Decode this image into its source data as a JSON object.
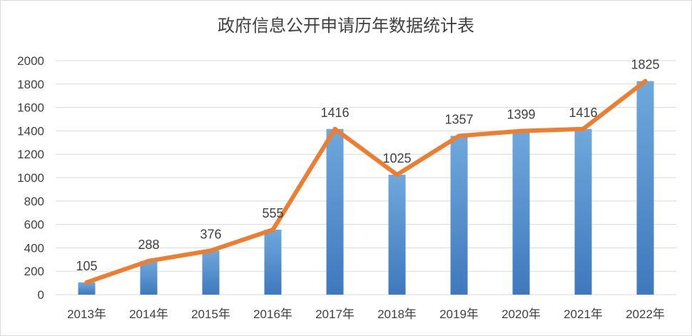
{
  "chart_data": {
    "type": "bar",
    "title": "政府信息公开申请历年数据统计表",
    "categories": [
      "2013年",
      "2014年",
      "2015年",
      "2016年",
      "2017年",
      "2018年",
      "2019年",
      "2020年",
      "2021年",
      "2022年"
    ],
    "series": [
      {
        "type": "bar",
        "values": [
          105,
          288,
          376,
          555,
          1416,
          1025,
          1357,
          1399,
          1416,
          1825
        ]
      },
      {
        "type": "line",
        "values": [
          105,
          288,
          376,
          555,
          1416,
          1025,
          1357,
          1399,
          1416,
          1825
        ]
      }
    ],
    "data_labels": [
      "105",
      "288",
      "376",
      "555",
      "1416",
      "1025",
      "1357",
      "1399",
      "1416",
      "1825"
    ],
    "ylim": [
      0,
      2000
    ],
    "yticks": [
      0,
      200,
      400,
      600,
      800,
      1000,
      1200,
      1400,
      1600,
      1800,
      2000
    ],
    "grid": true,
    "xlabel": "",
    "ylabel": "",
    "colors": {
      "bar_top": "#6fa8dc",
      "bar_bottom": "#3f78bd",
      "line": "#ed7d31",
      "grid": "#d9d9d9",
      "text": "#404040"
    }
  }
}
